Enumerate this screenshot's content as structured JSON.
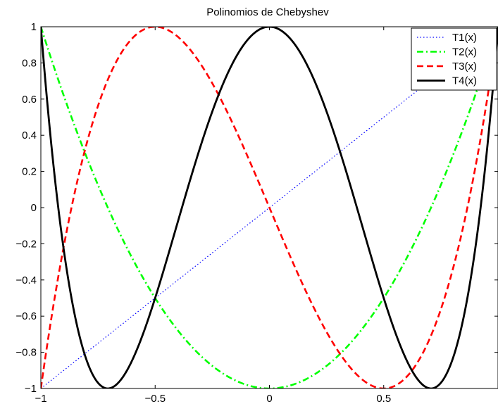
{
  "chart_data": {
    "type": "line",
    "title": "Polinomios de Chebyshev",
    "xlabel": "",
    "ylabel": "",
    "xlim": [
      -1,
      1
    ],
    "ylim": [
      -1,
      1
    ],
    "grid": false,
    "legend_position": "top-right",
    "x_ticks": [
      -1,
      -0.5,
      0,
      0.5
    ],
    "x_tick_labels": [
      "−1",
      "−0.5",
      "0",
      "0.5"
    ],
    "y_ticks": [
      1,
      0.8,
      0.6,
      0.4,
      0.2,
      0,
      -0.2,
      -0.4,
      -0.6,
      -0.8,
      -1
    ],
    "y_tick_labels": [
      "1",
      "0.8",
      "0.6",
      "0.4",
      "0.2",
      "0",
      "−0.2",
      "−0.4",
      "−0.6",
      "−0.8",
      "−1"
    ],
    "series": [
      {
        "name": "T1(x)",
        "color": "#0000ff",
        "style": "dotted",
        "x": [
          -1,
          -0.5,
          0,
          0.5,
          1
        ],
        "y": [
          -1,
          -0.5,
          0,
          0.5,
          1
        ]
      },
      {
        "name": "T2(x)",
        "color": "#00ff00",
        "style": "dashdot",
        "x": [
          -1,
          -0.75,
          -0.5,
          -0.25,
          0,
          0.25,
          0.5,
          0.75,
          1
        ],
        "y": [
          1,
          0.125,
          -0.5,
          -0.875,
          -1,
          -0.875,
          -0.5,
          0.125,
          1
        ]
      },
      {
        "name": "T3(x)",
        "color": "#ff0000",
        "style": "dashed",
        "x": [
          -1,
          -0.866,
          -0.75,
          -0.5,
          -0.25,
          0,
          0.25,
          0.5,
          0.75,
          0.866,
          1
        ],
        "y": [
          -1,
          0,
          0.563,
          1,
          0.688,
          0,
          -0.688,
          -1,
          -0.563,
          0,
          1
        ]
      },
      {
        "name": "T4(x)",
        "color": "#000000",
        "style": "solid",
        "x": [
          -1,
          -0.924,
          -0.8,
          -0.707,
          -0.6,
          -0.383,
          -0.2,
          0,
          0.2,
          0.383,
          0.6,
          0.707,
          0.8,
          0.924,
          1
        ],
        "y": [
          1,
          0,
          -0.843,
          -1,
          -0.872,
          0,
          0.693,
          1,
          0.693,
          0,
          -0.872,
          -1,
          -0.843,
          0,
          1
        ]
      }
    ]
  }
}
